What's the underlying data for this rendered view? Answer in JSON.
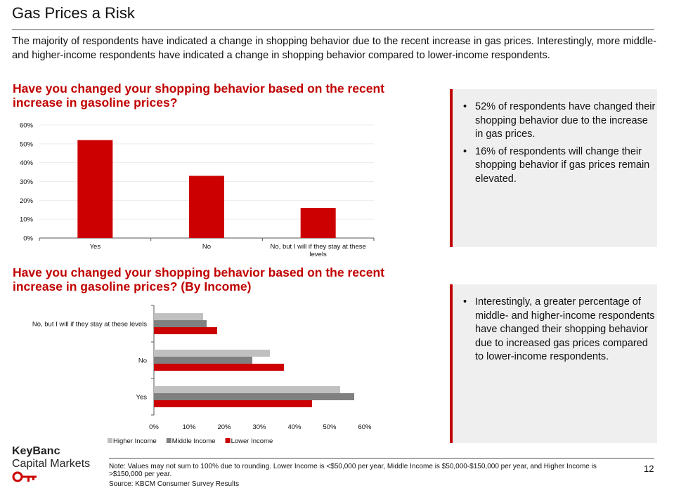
{
  "page": {
    "title": "Gas Prices a Risk",
    "intro": "The majority of respondents have indicated a change in shopping behavior due to the recent increase in gas prices. Interestingly, more middle- and higher-income respondents have indicated a change in shopping behavior compared to lower-income respondents.",
    "chart1_heading": "Have you changed your shopping behavior based on the recent increase in gasoline prices?",
    "chart2_heading": "Have you changed your shopping behavior based on the recent increase in gasoline prices? (By Income)",
    "callout1": [
      "52% of respondents have changed their shopping behavior due to the increase in gas prices.",
      "16% of respondents will change their shopping behavior if gas prices remain elevated."
    ],
    "callout2": [
      "Interestingly, a greater percentage of middle- and higher-income respondents have changed their shopping behavior due to increased gas prices compared to lower-income respondents."
    ],
    "logo_line1": "KeyBanc",
    "logo_line2": "Capital Markets",
    "note": "Note: Values may not sum to 100% due to rounding. Lower Income is <$50,000 per year, Middle Income is $50,000-$150,000 per year, and Higher Income is >$150,000 per year.",
    "source": "Source: KBCM Consumer Survey Results",
    "page_number": "12"
  },
  "colors": {
    "accent": "#c00000",
    "bar_red": "#cc0000",
    "higher_income": "#c0c0c0",
    "middle_income": "#808080",
    "lower_income": "#cc0000"
  },
  "chart_data": [
    {
      "type": "bar",
      "orientation": "vertical",
      "title": "Have you changed your shopping behavior based on the recent increase in gasoline prices?",
      "categories": [
        "Yes",
        "No",
        "No, but I will if they stay at these levels"
      ],
      "values": [
        52,
        33,
        16
      ],
      "ylim": [
        0,
        60
      ],
      "yticks": [
        "0%",
        "10%",
        "20%",
        "30%",
        "40%",
        "50%",
        "60%"
      ],
      "xlabel": "",
      "ylabel": ""
    },
    {
      "type": "bar",
      "orientation": "horizontal",
      "title": "Have you changed your shopping behavior based on the recent increase in gasoline prices? (By Income)",
      "categories": [
        "No, but I will if they stay at these levels",
        "No",
        "Yes"
      ],
      "series": [
        {
          "name": "Higher Income",
          "values": [
            14,
            33,
            53
          ]
        },
        {
          "name": "Middle Income",
          "values": [
            15,
            28,
            57
          ]
        },
        {
          "name": "Lower Income",
          "values": [
            18,
            37,
            45
          ]
        }
      ],
      "xlim": [
        0,
        60
      ],
      "xticks": [
        "0%",
        "10%",
        "20%",
        "30%",
        "40%",
        "50%",
        "60%"
      ],
      "legend": "bottom"
    }
  ]
}
